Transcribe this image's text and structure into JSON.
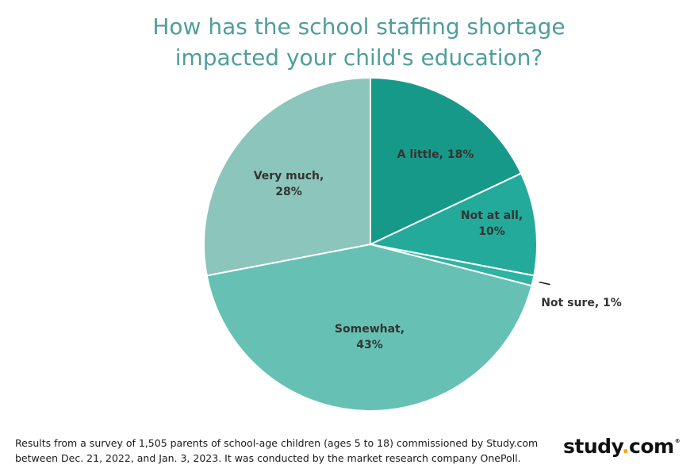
{
  "chart_data": {
    "type": "pie",
    "title_lines": [
      "How has the school staffing shortage",
      "impacted your child's education?"
    ],
    "slices": [
      {
        "name": "A little",
        "value": 18,
        "label": [
          "A little, 18%"
        ],
        "color": "#17998a"
      },
      {
        "name": "Not at all",
        "value": 10,
        "label": [
          "Not at all,",
          "10%"
        ],
        "color": "#24aa9a"
      },
      {
        "name": "Not sure",
        "value": 1,
        "label": [
          "Not sure, 1%"
        ],
        "color": "#2fb3a3"
      },
      {
        "name": "Somewhat",
        "value": 43,
        "label": [
          "Somewhat,",
          "43%"
        ],
        "color": "#66c1b4"
      },
      {
        "name": "Very much",
        "value": 28,
        "label": [
          "Very much,",
          "28%"
        ],
        "color": "#8bc5bc"
      }
    ]
  },
  "footnote": {
    "line1": "Results from a survey of 1,505 parents of school-age children (ages 5 to 18) commissioned by Study.com",
    "line2": "between Dec. 21, 2022, and Jan. 3, 2023. It was conducted by the market research company OnePoll."
  },
  "logo": {
    "part1": "study",
    "dot": ".",
    "part2": "com",
    "reg": "®",
    "dot_color": "#f2a900"
  }
}
